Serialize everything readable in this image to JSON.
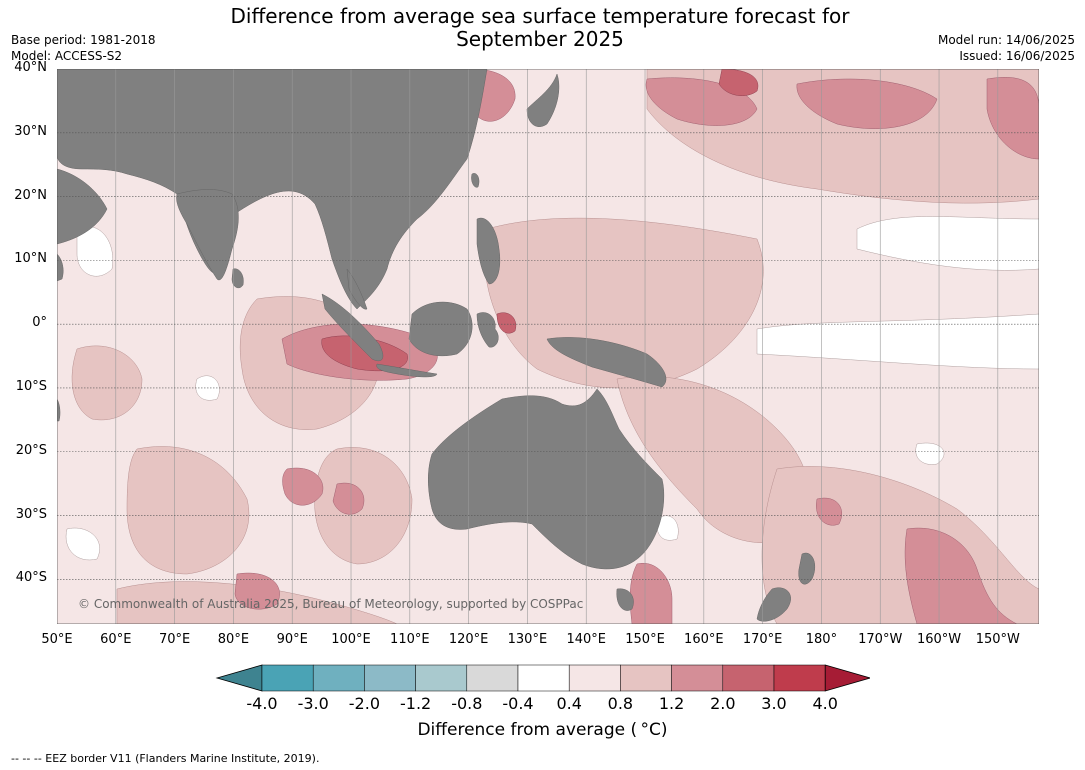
{
  "title": "Difference from average sea surface temperature forecast for September 2025",
  "title_line1": "Difference from average sea surface temperature forecast for",
  "title_line2": "September 2025",
  "base_period": "Base period: 1981-2018",
  "model": "Model: ACCESS-S2",
  "model_run": "Model run: 14/06/2025",
  "issued": "Issued: 16/06/2025",
  "copyright": "© Commonwealth of Australia 2025, Bureau of Meteorology, supported by COSPPac",
  "footnote": "--  --  -- EEZ border V11 (Flanders Marine Institute, 2019).",
  "map": {
    "lat_labels": [
      "40°N",
      "30°N",
      "20°N",
      "10°N",
      "0°",
      "10°S",
      "20°S",
      "30°S",
      "40°S"
    ],
    "lon_labels": [
      "50°E",
      "60°E",
      "70°E",
      "80°E",
      "90°E",
      "100°E",
      "110°E",
      "120°E",
      "130°E",
      "140°E",
      "150°E",
      "160°E",
      "170°E",
      "180°",
      "170°W",
      "160°W",
      "150°W"
    ],
    "lat_values": [
      40,
      30,
      20,
      10,
      0,
      -10,
      -20,
      -30,
      -40
    ],
    "lon_values": [
      50,
      60,
      70,
      80,
      90,
      100,
      110,
      120,
      130,
      140,
      150,
      160,
      170,
      180,
      190,
      200,
      210
    ],
    "lat_range": [
      -47,
      40
    ],
    "lon_range": [
      50,
      217
    ],
    "land_color": "#808080"
  },
  "colorbar": {
    "title": "Difference from average ( °C)",
    "tick_labels": [
      "-4.0",
      "-3.0",
      "-2.0",
      "-1.2",
      "-0.8",
      "-0.4",
      "0.4",
      "0.8",
      "1.2",
      "2.0",
      "3.0",
      "4.0"
    ],
    "colors": [
      "#3e8390",
      "#4aa3b5",
      "#6fb0bf",
      "#8cbac7",
      "#a9c9ce",
      "#d9d9d9",
      "#ffffff",
      "#f5e6e6",
      "#e6c4c2",
      "#d48e97",
      "#c6636f",
      "#bf3c4c",
      "#a61c35"
    ]
  }
}
